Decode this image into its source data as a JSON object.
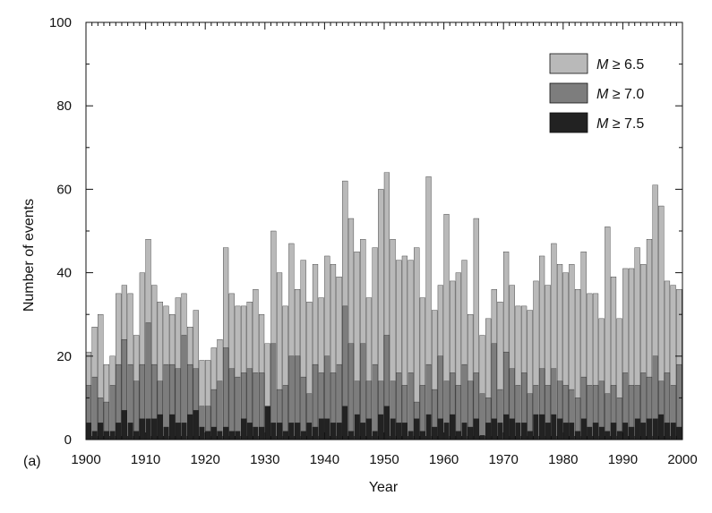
{
  "chart_data": {
    "type": "bar",
    "stacked": true,
    "panel_label": "(a)",
    "xlabel": "Year",
    "ylabel": "Number of events",
    "xlim": [
      1900,
      2000
    ],
    "ylim": [
      0,
      100
    ],
    "x_ticks": [
      1900,
      1910,
      1920,
      1930,
      1940,
      1950,
      1960,
      1970,
      1980,
      1990,
      2000
    ],
    "y_ticks": [
      0,
      20,
      40,
      60,
      80,
      100
    ],
    "legend_position": "top-right",
    "legend_notes": "the legend reads M ≥ 6.5, M ≥ 7.0, M ≥ 7.5 with the M in italics; each series below is the prefix in italics plus the suffix",
    "x": [
      1900,
      1901,
      1902,
      1903,
      1904,
      1905,
      1906,
      1907,
      1908,
      1909,
      1910,
      1911,
      1912,
      1913,
      1914,
      1915,
      1916,
      1917,
      1918,
      1919,
      1920,
      1921,
      1922,
      1923,
      1924,
      1925,
      1926,
      1927,
      1928,
      1929,
      1930,
      1931,
      1932,
      1933,
      1934,
      1935,
      1936,
      1937,
      1938,
      1939,
      1940,
      1941,
      1942,
      1943,
      1944,
      1945,
      1946,
      1947,
      1948,
      1949,
      1950,
      1951,
      1952,
      1953,
      1954,
      1955,
      1956,
      1957,
      1958,
      1959,
      1960,
      1961,
      1962,
      1963,
      1964,
      1965,
      1966,
      1967,
      1968,
      1969,
      1970,
      1971,
      1972,
      1973,
      1974,
      1975,
      1976,
      1977,
      1978,
      1979,
      1980,
      1981,
      1982,
      1983,
      1984,
      1985,
      1986,
      1987,
      1988,
      1989,
      1990,
      1991,
      1992,
      1993,
      1994,
      1995,
      1996,
      1997,
      1998,
      1999
    ],
    "series": [
      {
        "name_prefix": "M",
        "name_suffix": " ≥ 6.5",
        "color": "#b9b9b9",
        "values": [
          21,
          27,
          30,
          18,
          20,
          35,
          37,
          35,
          25,
          40,
          48,
          37,
          33,
          32,
          30,
          34,
          35,
          27,
          31,
          19,
          19,
          22,
          24,
          46,
          35,
          32,
          32,
          33,
          36,
          30,
          23,
          50,
          40,
          32,
          47,
          36,
          43,
          33,
          42,
          34,
          44,
          42,
          39,
          62,
          53,
          45,
          48,
          34,
          46,
          60,
          64,
          48,
          43,
          44,
          43,
          46,
          34,
          63,
          31,
          37,
          54,
          38,
          40,
          43,
          30,
          53,
          25,
          29,
          36,
          33,
          45,
          37,
          32,
          32,
          31,
          38,
          44,
          37,
          47,
          42,
          40,
          42,
          36,
          45,
          35,
          35,
          29,
          51,
          39,
          29,
          41,
          41,
          46,
          42,
          48,
          61,
          56,
          38,
          37,
          36
        ]
      },
      {
        "name_prefix": "M",
        "name_suffix": " ≥ 7.0",
        "color": "#7d7d7d",
        "values": [
          13,
          15,
          10,
          9,
          13,
          18,
          24,
          18,
          14,
          18,
          28,
          18,
          14,
          18,
          18,
          17,
          25,
          18,
          17,
          8,
          8,
          12,
          14,
          22,
          17,
          15,
          16,
          17,
          16,
          16,
          8,
          23,
          12,
          13,
          20,
          20,
          15,
          11,
          18,
          16,
          20,
          16,
          18,
          32,
          23,
          14,
          23,
          14,
          18,
          14,
          25,
          14,
          16,
          13,
          16,
          9,
          13,
          18,
          12,
          20,
          14,
          16,
          13,
          18,
          14,
          16,
          11,
          10,
          23,
          12,
          21,
          17,
          13,
          16,
          11,
          13,
          17,
          13,
          17,
          14,
          13,
          12,
          10,
          15,
          13,
          13,
          14,
          11,
          13,
          10,
          16,
          13,
          13,
          16,
          15,
          20,
          14,
          16,
          13,
          18
        ]
      },
      {
        "name_prefix": "M",
        "name_suffix": " ≥ 7.5",
        "color": "#222222",
        "values": [
          4,
          2,
          4,
          2,
          2,
          4,
          7,
          4,
          2,
          5,
          5,
          5,
          6,
          3,
          6,
          4,
          4,
          6,
          7,
          3,
          2,
          3,
          2,
          3,
          2,
          2,
          5,
          4,
          3,
          3,
          8,
          4,
          4,
          2,
          4,
          4,
          2,
          4,
          3,
          5,
          5,
          4,
          4,
          8,
          2,
          6,
          4,
          5,
          2,
          6,
          8,
          5,
          4,
          4,
          2,
          5,
          2,
          6,
          3,
          5,
          4,
          6,
          2,
          4,
          3,
          5,
          1,
          4,
          5,
          4,
          6,
          5,
          4,
          4,
          2,
          6,
          6,
          4,
          6,
          5,
          4,
          4,
          2,
          5,
          3,
          4,
          3,
          2,
          4,
          2,
          4,
          3,
          5,
          4,
          5,
          5,
          6,
          4,
          4,
          3
        ]
      }
    ]
  }
}
